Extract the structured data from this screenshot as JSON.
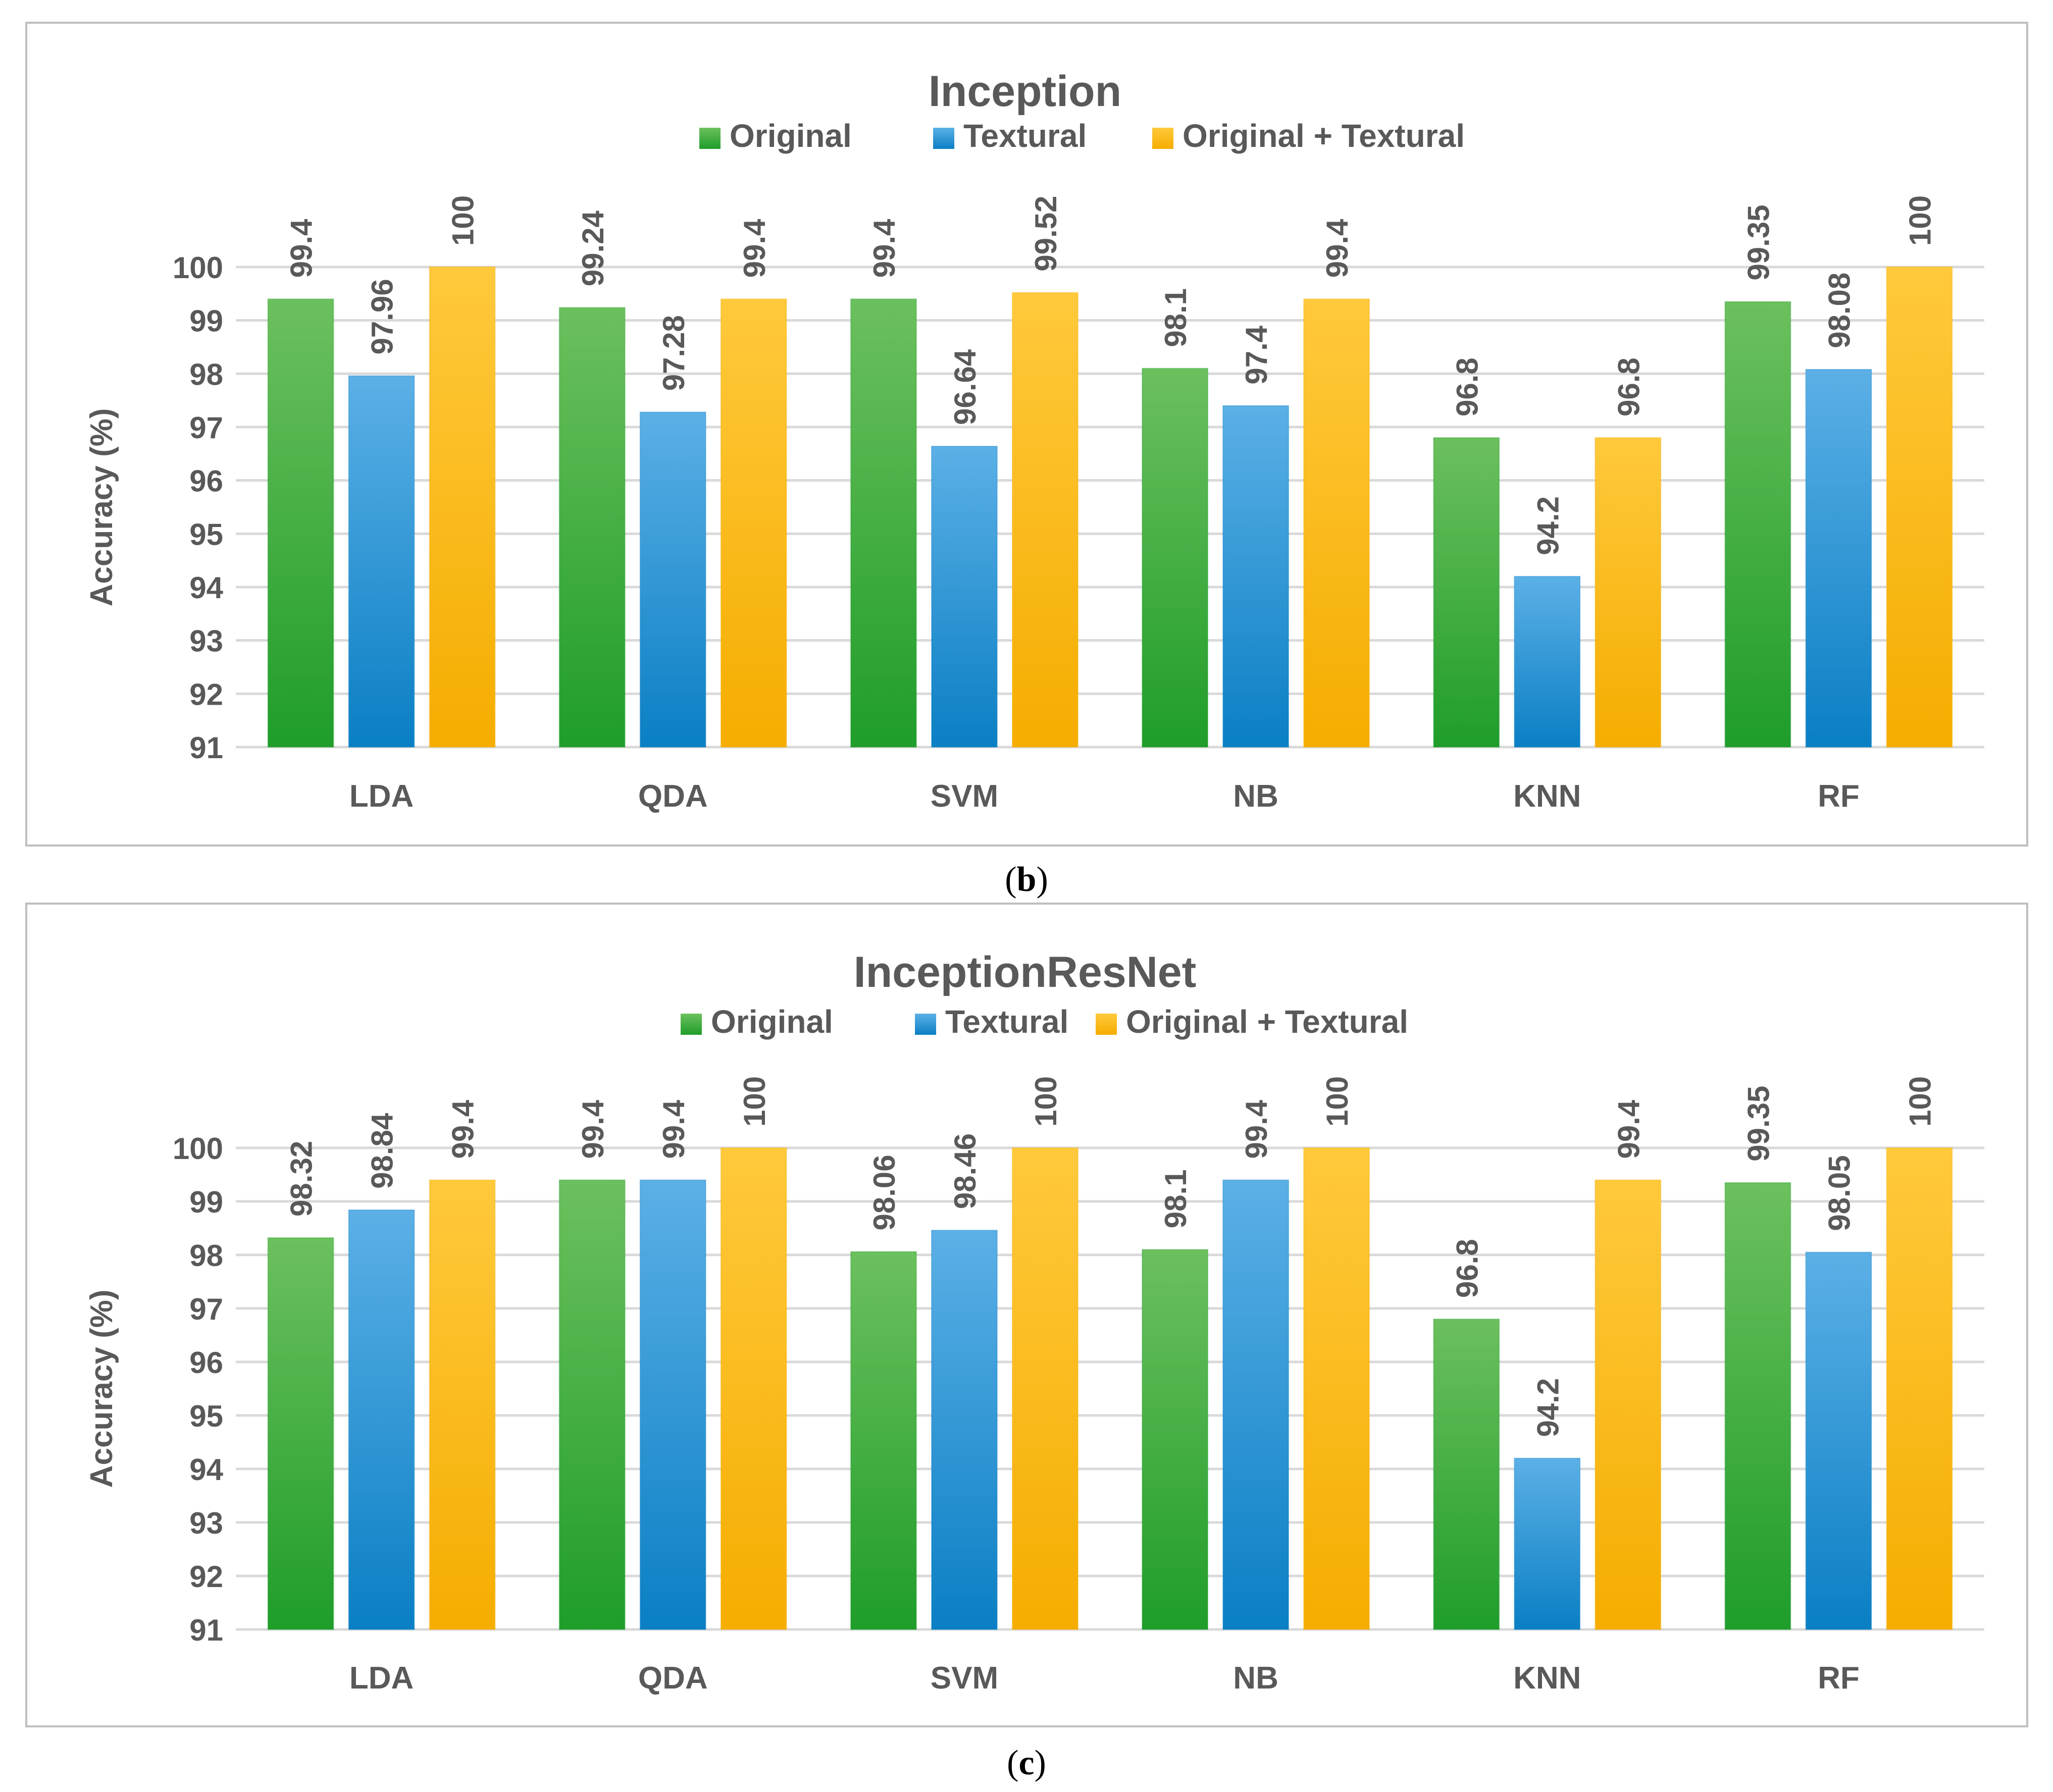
{
  "colors": {
    "original_top": "#6cc05e",
    "original_bottom": "#1f9d2a",
    "textural_top": "#5cb0e6",
    "textural_bottom": "#0a7fc4",
    "combined_top": "#ffc93c",
    "combined_bottom": "#f5ad00",
    "text": "#595959",
    "grid": "#d9d9d9",
    "frame": "#bfbfbf"
  },
  "chart_data": [
    {
      "type": "bar",
      "title": "Inception",
      "caption": "b",
      "ylabel": "Accuracy (%)",
      "xlabel": "",
      "ylim": [
        91,
        100
      ],
      "yticks": [
        "91",
        "92",
        "93",
        "94",
        "95",
        "96",
        "97",
        "98",
        "99",
        "100"
      ],
      "grid": true,
      "legend_position": "top-center",
      "categories": [
        "LDA",
        "QDA",
        "SVM",
        "NB",
        "KNN",
        "RF"
      ],
      "series": [
        {
          "name": "Original",
          "values": [
            99.4,
            99.24,
            99.4,
            98.1,
            96.8,
            99.35
          ]
        },
        {
          "name": "Textural",
          "values": [
            97.96,
            97.28,
            96.64,
            97.4,
            94.2,
            98.08
          ]
        },
        {
          "name": "Original + Textural",
          "values": [
            100,
            99.4,
            99.52,
            99.4,
            96.8,
            100
          ]
        }
      ]
    },
    {
      "type": "bar",
      "title": "InceptionResNet",
      "caption": "c",
      "ylabel": "Accuracy (%)",
      "xlabel": "",
      "ylim": [
        91,
        100
      ],
      "yticks": [
        "91",
        "92",
        "93",
        "94",
        "95",
        "96",
        "97",
        "98",
        "99",
        "100"
      ],
      "grid": true,
      "legend_position": "top-center",
      "categories": [
        "LDA",
        "QDA",
        "SVM",
        "NB",
        "KNN",
        "RF"
      ],
      "series": [
        {
          "name": "Original",
          "values": [
            98.32,
            99.4,
            98.06,
            98.1,
            96.8,
            99.35
          ]
        },
        {
          "name": "Textural",
          "values": [
            98.84,
            99.4,
            98.46,
            99.4,
            94.2,
            98.05
          ]
        },
        {
          "name": "Original + Textural",
          "values": [
            99.4,
            100,
            100,
            100,
            99.4,
            100
          ]
        }
      ]
    }
  ]
}
